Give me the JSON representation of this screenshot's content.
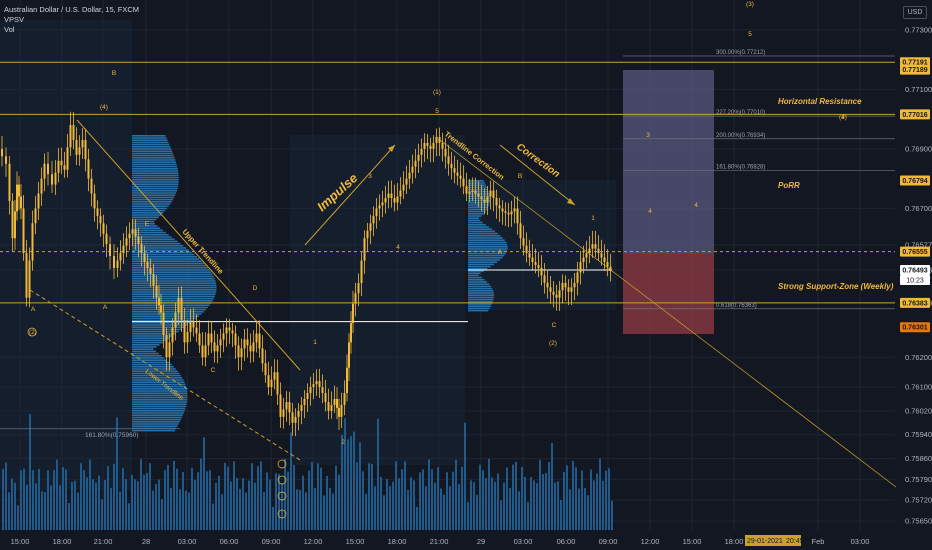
{
  "header": {
    "title": "Australian Dollar / U.S. Dollar, 15, FXCM",
    "indicators": [
      "VPSV",
      "Vol"
    ]
  },
  "currency_label": "USD",
  "colors": {
    "background": "#131722",
    "candle": "#f0b93a",
    "gold_line": "#c9a227",
    "volume": "#1f5a8a",
    "volume_profile": "#2a7fbf",
    "grid": "#1e2433",
    "target_box": "#5a5980",
    "stop_box": "#8a3a42"
  },
  "chart_data": {
    "type": "candlestick",
    "symbol": "Australian Dollar / U.S. Dollar",
    "timeframe": "15",
    "ylim": [
      0.7562,
      0.774
    ],
    "y_ticks": [
      "0.77300",
      "0.77100",
      "0.76900",
      "0.76700",
      "0.76577",
      "0.76493",
      "0.76383",
      "0.76200",
      "0.76100",
      "0.76020",
      "0.75940",
      "0.75860",
      "0.75790",
      "0.75720",
      "0.75650"
    ],
    "x_ticks": [
      "15:00",
      "18:00",
      "21:00",
      "28",
      "03:00",
      "06:00",
      "09:00",
      "12:00",
      "15:00",
      "18:00",
      "21:00",
      "29",
      "03:00",
      "06:00",
      "09:00",
      "12:00",
      "15:00",
      "18:00",
      "Feb",
      "03:00"
    ],
    "price_path": [
      [
        0,
        0.769
      ],
      [
        8,
        0.7685
      ],
      [
        14,
        0.766
      ],
      [
        18,
        0.7678
      ],
      [
        22,
        0.767
      ],
      [
        28,
        0.764
      ],
      [
        34,
        0.7665
      ],
      [
        40,
        0.7675
      ],
      [
        46,
        0.7685
      ],
      [
        54,
        0.7678
      ],
      [
        60,
        0.7686
      ],
      [
        66,
        0.7683
      ],
      [
        72,
        0.7698
      ],
      [
        78,
        0.7688
      ],
      [
        84,
        0.7693
      ],
      [
        90,
        0.768
      ],
      [
        96,
        0.767
      ],
      [
        102,
        0.7665
      ],
      [
        108,
        0.7658
      ],
      [
        116,
        0.765
      ],
      [
        122,
        0.7655
      ],
      [
        128,
        0.766
      ],
      [
        134,
        0.7663
      ],
      [
        140,
        0.7658
      ],
      [
        146,
        0.7652
      ],
      [
        152,
        0.7648
      ],
      [
        158,
        0.764
      ],
      [
        162,
        0.7635
      ],
      [
        168,
        0.762
      ],
      [
        174,
        0.763
      ],
      [
        180,
        0.764
      ],
      [
        186,
        0.7625
      ],
      [
        192,
        0.7632
      ],
      [
        198,
        0.7628
      ],
      [
        204,
        0.762
      ],
      [
        210,
        0.7628
      ],
      [
        216,
        0.7622
      ],
      [
        222,
        0.7626
      ],
      [
        228,
        0.763
      ],
      [
        234,
        0.7628
      ],
      [
        240,
        0.762
      ],
      [
        246,
        0.7626
      ],
      [
        252,
        0.7622
      ],
      [
        258,
        0.7628
      ],
      [
        264,
        0.7618
      ],
      [
        270,
        0.761
      ],
      [
        276,
        0.7615
      ],
      [
        282,
        0.76
      ],
      [
        288,
        0.7605
      ],
      [
        294,
        0.7598
      ],
      [
        300,
        0.7602
      ],
      [
        306,
        0.7606
      ],
      [
        312,
        0.761
      ],
      [
        318,
        0.7612
      ],
      [
        324,
        0.7608
      ],
      [
        330,
        0.7602
      ],
      [
        336,
        0.7606
      ],
      [
        340,
        0.76
      ],
      [
        346,
        0.7608
      ],
      [
        350,
        0.7625
      ],
      [
        354,
        0.7638
      ],
      [
        360,
        0.7645
      ],
      [
        366,
        0.766
      ],
      [
        372,
        0.7665
      ],
      [
        378,
        0.767
      ],
      [
        384,
        0.7672
      ],
      [
        390,
        0.7675
      ],
      [
        396,
        0.7672
      ],
      [
        402,
        0.7676
      ],
      [
        408,
        0.768
      ],
      [
        414,
        0.7684
      ],
      [
        420,
        0.7688
      ],
      [
        426,
        0.7692
      ],
      [
        432,
        0.769
      ],
      [
        438,
        0.7694
      ],
      [
        444,
        0.769
      ],
      [
        450,
        0.7685
      ],
      [
        456,
        0.7682
      ],
      [
        462,
        0.768
      ],
      [
        468,
        0.7675
      ],
      [
        474,
        0.7676
      ],
      [
        480,
        0.7674
      ],
      [
        486,
        0.7672
      ],
      [
        492,
        0.7676
      ],
      [
        498,
        0.7671
      ],
      [
        504,
        0.7669
      ],
      [
        510,
        0.7668
      ],
      [
        516,
        0.767
      ],
      [
        522,
        0.766
      ],
      [
        528,
        0.7655
      ],
      [
        534,
        0.7652
      ],
      [
        540,
        0.765
      ],
      [
        546,
        0.7645
      ],
      [
        552,
        0.7642
      ],
      [
        558,
        0.764
      ],
      [
        564,
        0.7645
      ],
      [
        570,
        0.7642
      ],
      [
        576,
        0.7645
      ],
      [
        582,
        0.7652
      ],
      [
        588,
        0.7655
      ],
      [
        594,
        0.7658
      ],
      [
        600,
        0.7655
      ],
      [
        606,
        0.7652
      ],
      [
        612,
        0.7649
      ]
    ],
    "last_price": "0.76493",
    "countdown": "10:23"
  },
  "price_labels": [
    {
      "text": "0.77191",
      "price": 0.77191,
      "color": "#f0b93a",
      "fg": "#131722"
    },
    {
      "text": "0.77189",
      "price": 0.77166,
      "color": "#f0b93a",
      "fg": "#131722"
    },
    {
      "text": "0.77016",
      "price": 0.77016,
      "color": "#f0b93a",
      "fg": "#131722"
    },
    {
      "text": "0.76794",
      "price": 0.76794,
      "color": "#f0b93a",
      "fg": "#131722"
    },
    {
      "text": "0.76555",
      "price": 0.76555,
      "color": "#f0b93a",
      "fg": "#131722"
    },
    {
      "text": "0.76493",
      "price": 0.76493,
      "color": "#ffffff",
      "fg": "#131722"
    },
    {
      "text": "0.76383",
      "price": 0.76383,
      "color": "#f0b93a",
      "fg": "#131722"
    },
    {
      "text": "0.76301",
      "price": 0.76301,
      "color": "#e8760b",
      "fg": "#131722"
    }
  ],
  "fib_labels": [
    {
      "text": "300.00%(0.77212)",
      "price": 0.77212
    },
    {
      "text": "227.20%(0.77010)",
      "price": 0.7701
    },
    {
      "text": "200.00%(0.76934)",
      "price": 0.76934
    },
    {
      "text": "161.80%(0.76828)",
      "price": 0.76828
    },
    {
      "text": "0.618(0.76363)",
      "price": 0.76363
    }
  ],
  "annotations": {
    "horizontal_resistance": "Horizontal Resistance",
    "porr": "PoRR",
    "strong_support": "Strong Support-Zone (Weekly)",
    "impulse": "Impulse",
    "correction": "Correction",
    "trendline_correction": "Trendline Correction",
    "upper_trendline": "Upper Trendline",
    "lower_trendline": "Lower Trendline",
    "fib_left": "161.80%(0.75960)",
    "date_tag": "29-01-2021",
    "time_tag": "20:45"
  },
  "wave_labels": [
    "(3)",
    "5",
    "B",
    "(4)",
    "(1)",
    "5",
    "3",
    "4",
    "(2)",
    "A",
    "C",
    "1",
    "2",
    "3",
    "4",
    "1",
    "2",
    "B",
    "A",
    "C",
    "D",
    "E",
    "A",
    "(2)",
    "4",
    "(4)"
  ]
}
